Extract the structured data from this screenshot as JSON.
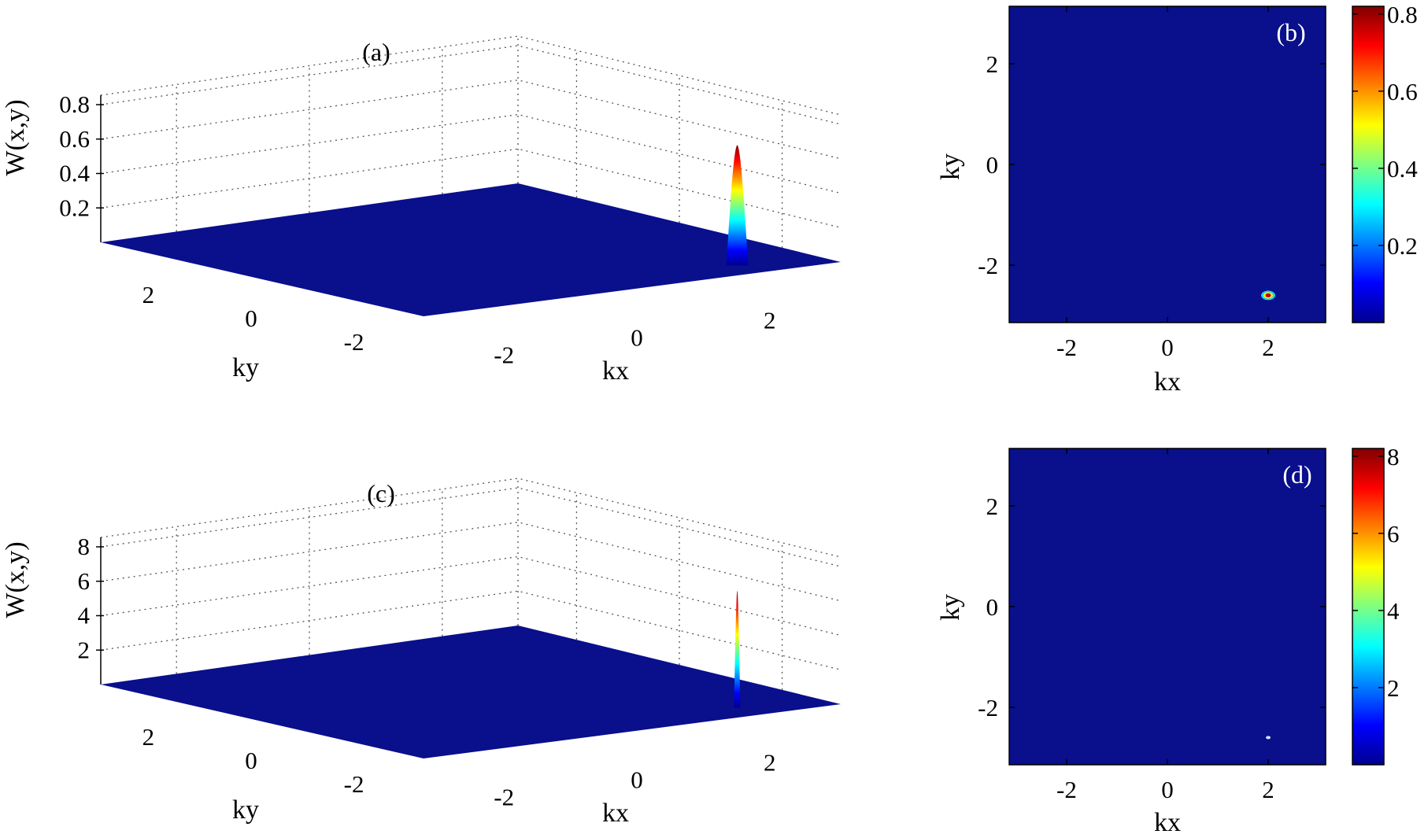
{
  "chart_data": [
    {
      "type": "surface3d",
      "panel_label": "(a)",
      "xlabel": "kx",
      "ylabel": "ky",
      "zlabel": "W(x,y)",
      "xlim": [
        -3.14,
        3.14
      ],
      "ylim": [
        -3.14,
        3.14
      ],
      "zlim": [
        0,
        0.8
      ],
      "x_ticks": [
        -2,
        0,
        2
      ],
      "y_ticks": [
        2,
        0,
        -2
      ],
      "z_ticks": [
        0.2,
        0.4,
        0.6,
        0.8
      ],
      "z_tick_labels": [
        "0.2",
        "0.4",
        "0.6",
        "0.8"
      ],
      "grid": true,
      "surface_color": "#0a0f8c",
      "peak": {
        "kx": 2.0,
        "ky": -2.6,
        "value": 0.7
      }
    },
    {
      "type": "heatmap",
      "panel_label": "(b)",
      "xlabel": "kx",
      "ylabel": "ky",
      "xlim": [
        -3.14,
        3.14
      ],
      "ylim": [
        -3.14,
        3.14
      ],
      "x_ticks": [
        -2,
        0,
        2
      ],
      "y_ticks": [
        2,
        0,
        -2
      ],
      "background_color": "#0a0f8c",
      "peak": {
        "kx": 2.0,
        "ky": -2.6,
        "value": 0.8
      },
      "colorbar": {
        "range": [
          0,
          0.82
        ],
        "ticks": [
          0.2,
          0.4,
          0.6,
          0.8
        ],
        "tick_labels": [
          "0.2",
          "0.4",
          "0.6",
          "0.8"
        ]
      }
    },
    {
      "type": "surface3d",
      "panel_label": "(c)",
      "xlabel": "kx",
      "ylabel": "ky",
      "zlabel": "W(x,y)",
      "xlim": [
        -3.14,
        3.14
      ],
      "ylim": [
        -3.14,
        3.14
      ],
      "zlim": [
        0,
        8
      ],
      "x_ticks": [
        -2,
        0,
        2
      ],
      "y_ticks": [
        2,
        0,
        -2
      ],
      "z_ticks": [
        2,
        4,
        6,
        8
      ],
      "z_tick_labels": [
        "2",
        "4",
        "6",
        "8"
      ],
      "grid": true,
      "surface_color": "#0a0f8c",
      "peak": {
        "kx": 2.0,
        "ky": -2.6,
        "value": 6.8
      }
    },
    {
      "type": "heatmap",
      "panel_label": "(d)",
      "xlabel": "kx",
      "ylabel": "ky",
      "xlim": [
        -3.14,
        3.14
      ],
      "ylim": [
        -3.14,
        3.14
      ],
      "x_ticks": [
        -2,
        0,
        2
      ],
      "y_ticks": [
        2,
        0,
        -2
      ],
      "background_color": "#0a0f8c",
      "peak": {
        "kx": 2.0,
        "ky": -2.6,
        "value": 8.0
      },
      "colorbar": {
        "range": [
          0,
          8.2
        ],
        "ticks": [
          2,
          4,
          6,
          8
        ],
        "tick_labels": [
          "2",
          "4",
          "6",
          "8"
        ]
      }
    }
  ],
  "colormap": "jet"
}
